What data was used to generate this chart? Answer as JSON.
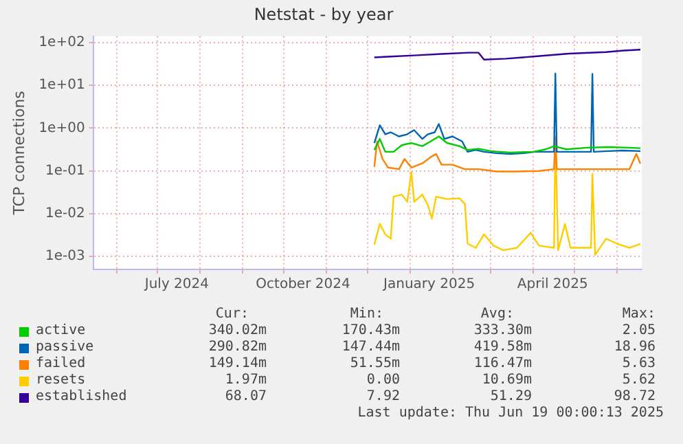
{
  "chart_data": {
    "type": "line",
    "title": "Netstat - by year",
    "ylabel": "TCP connections",
    "log": "y",
    "grid": true,
    "legend": "bottom",
    "marker": "none",
    "line_style": "solid",
    "xlim": [
      "2024-05-15",
      "2025-06-19"
    ],
    "xticks": [
      {
        "value": "2024-06-01",
        "label": null
      },
      {
        "value": "2024-07-01",
        "label": null
      },
      {
        "value": "2024-07-15",
        "label": "July 2024"
      },
      {
        "value": "2024-08-01",
        "label": null
      },
      {
        "value": "2024-09-01",
        "label": null
      },
      {
        "value": "2024-10-01",
        "label": null
      },
      {
        "value": "2024-10-15",
        "label": "October 2024"
      },
      {
        "value": "2024-11-01",
        "label": null
      },
      {
        "value": "2024-12-01",
        "label": null
      },
      {
        "value": "2025-01-01",
        "label": null
      },
      {
        "value": "2025-01-15",
        "label": "January 2025"
      },
      {
        "value": "2025-02-01",
        "label": null
      },
      {
        "value": "2025-03-01",
        "label": null
      },
      {
        "value": "2025-04-01",
        "label": null
      },
      {
        "value": "2025-04-15",
        "label": "April 2025"
      },
      {
        "value": "2025-05-01",
        "label": null
      },
      {
        "value": "2025-06-01",
        "label": null
      }
    ],
    "ylim": [
      0.0005,
      140
    ],
    "yticks": [
      {
        "value": 0.001,
        "label": "1e-03"
      },
      {
        "value": 0.01,
        "label": "1e-02"
      },
      {
        "value": 0.1,
        "label": "1e-01"
      },
      {
        "value": 1,
        "label": "1e+00"
      },
      {
        "value": 10,
        "label": "1e+01"
      },
      {
        "value": 100,
        "label": "1e+02"
      }
    ],
    "series": [
      {
        "name": "active",
        "color": "#00cc00",
        "x": [
          "2024-12-06",
          "2024-12-10",
          "2024-12-14",
          "2024-12-20",
          "2024-12-26",
          "2025-01-02",
          "2025-01-10",
          "2025-01-16",
          "2025-01-22",
          "2025-01-28",
          "2025-02-06",
          "2025-02-12",
          "2025-02-20",
          "2025-03-01",
          "2025-03-15",
          "2025-04-01",
          "2025-04-10",
          "2025-04-16",
          "2025-04-25",
          "2025-05-10",
          "2025-05-25",
          "2025-06-10",
          "2025-06-18"
        ],
        "values": [
          0.31,
          0.56,
          0.28,
          0.28,
          0.4,
          0.45,
          0.38,
          0.49,
          0.64,
          0.45,
          0.38,
          0.31,
          0.33,
          0.29,
          0.27,
          0.28,
          0.32,
          0.38,
          0.32,
          0.35,
          0.36,
          0.35,
          0.34
        ]
      },
      {
        "name": "passive",
        "color": "#0066b3",
        "x": [
          "2024-12-06",
          "2024-12-10",
          "2024-12-14",
          "2024-12-18",
          "2024-12-24",
          "2024-12-30",
          "2025-01-04",
          "2025-01-10",
          "2025-01-14",
          "2025-01-19",
          "2025-01-22",
          "2025-01-26",
          "2025-02-01",
          "2025-02-08",
          "2025-02-12",
          "2025-02-18",
          "2025-02-24",
          "2025-03-05",
          "2025-03-15",
          "2025-03-25",
          "2025-04-02",
          "2025-04-16",
          "2025-04-17",
          "2025-04-18",
          "2025-05-13",
          "2025-05-14",
          "2025-05-15",
          "2025-05-25",
          "2025-06-05",
          "2025-06-18"
        ],
        "values": [
          0.45,
          1.17,
          0.72,
          0.8,
          0.64,
          0.72,
          0.9,
          0.56,
          0.72,
          0.8,
          1.25,
          0.56,
          0.64,
          0.49,
          0.28,
          0.31,
          0.28,
          0.26,
          0.25,
          0.26,
          0.28,
          0.28,
          18.96,
          0.28,
          0.28,
          18.5,
          0.28,
          0.29,
          0.3,
          0.29
        ]
      },
      {
        "name": "failed",
        "color": "#ff8000",
        "x": [
          "2024-12-06",
          "2024-12-08",
          "2024-12-12",
          "2024-12-16",
          "2024-12-24",
          "2024-12-28",
          "2025-01-02",
          "2025-01-10",
          "2025-01-16",
          "2025-01-20",
          "2025-01-24",
          "2025-02-01",
          "2025-02-10",
          "2025-02-20",
          "2025-03-05",
          "2025-03-20",
          "2025-04-05",
          "2025-04-16",
          "2025-04-17",
          "2025-04-18",
          "2025-05-01",
          "2025-05-20",
          "2025-06-10",
          "2025-06-15",
          "2025-06-18"
        ],
        "values": [
          0.124,
          0.49,
          0.19,
          0.12,
          0.11,
          0.19,
          0.12,
          0.15,
          0.21,
          0.25,
          0.14,
          0.14,
          0.11,
          0.11,
          0.097,
          0.097,
          0.1,
          0.11,
          0.6,
          0.11,
          0.11,
          0.11,
          0.11,
          0.25,
          0.149
        ]
      },
      {
        "name": "resets",
        "color": "#ffcc00",
        "x": [
          "2024-12-06",
          "2024-12-10",
          "2024-12-14",
          "2024-12-18",
          "2024-12-20",
          "2024-12-26",
          "2024-12-30",
          "2025-01-02",
          "2025-01-04",
          "2025-01-10",
          "2025-01-14",
          "2025-01-17",
          "2025-01-20",
          "2025-01-28",
          "2025-02-06",
          "2025-02-10",
          "2025-02-12",
          "2025-02-18",
          "2025-02-24",
          "2025-03-03",
          "2025-03-10",
          "2025-03-20",
          "2025-03-30",
          "2025-04-05",
          "2025-04-16",
          "2025-04-17",
          "2025-04-19",
          "2025-04-24",
          "2025-04-28",
          "2025-05-10",
          "2025-05-13",
          "2025-05-14",
          "2025-05-16",
          "2025-05-24",
          "2025-06-01",
          "2025-06-10",
          "2025-06-18"
        ],
        "values": [
          0.0019,
          0.0058,
          0.0033,
          0.0026,
          0.025,
          0.028,
          0.019,
          0.095,
          0.019,
          0.028,
          0.016,
          0.0077,
          0.025,
          0.022,
          0.023,
          0.017,
          0.002,
          0.0016,
          0.0033,
          0.0018,
          0.0014,
          0.0016,
          0.0036,
          0.0018,
          0.0016,
          0.64,
          0.0014,
          0.0058,
          0.0016,
          0.0016,
          0.0016,
          0.085,
          0.0011,
          0.0026,
          0.002,
          0.0016,
          0.00197
        ]
      },
      {
        "name": "established",
        "color": "#330099",
        "x": [
          "2024-12-06",
          "2024-12-18",
          "2025-01-04",
          "2025-01-24",
          "2025-02-13",
          "2025-02-20",
          "2025-02-24",
          "2025-03-12",
          "2025-04-04",
          "2025-04-27",
          "2025-05-24",
          "2025-06-06",
          "2025-06-18"
        ],
        "values": [
          45,
          47,
          50,
          54,
          58,
          58,
          40,
          42,
          48,
          55,
          60,
          65,
          68.07
        ]
      }
    ],
    "annotations": [
      "Cur:",
      "Min:",
      "Avg:",
      "Max:",
      "340.02m",
      "170.43m",
      "333.30m",
      "2.05",
      "290.82m",
      "147.44m",
      "419.58m",
      "18.96",
      "149.14m",
      "51.55m",
      "116.47m",
      "5.63",
      "1.97m",
      "0.00",
      "10.69m",
      "5.62",
      "68.07",
      "7.92",
      "51.29",
      "98.72",
      "Last update: Thu Jun 19 00:00:13 2025"
    ]
  }
}
